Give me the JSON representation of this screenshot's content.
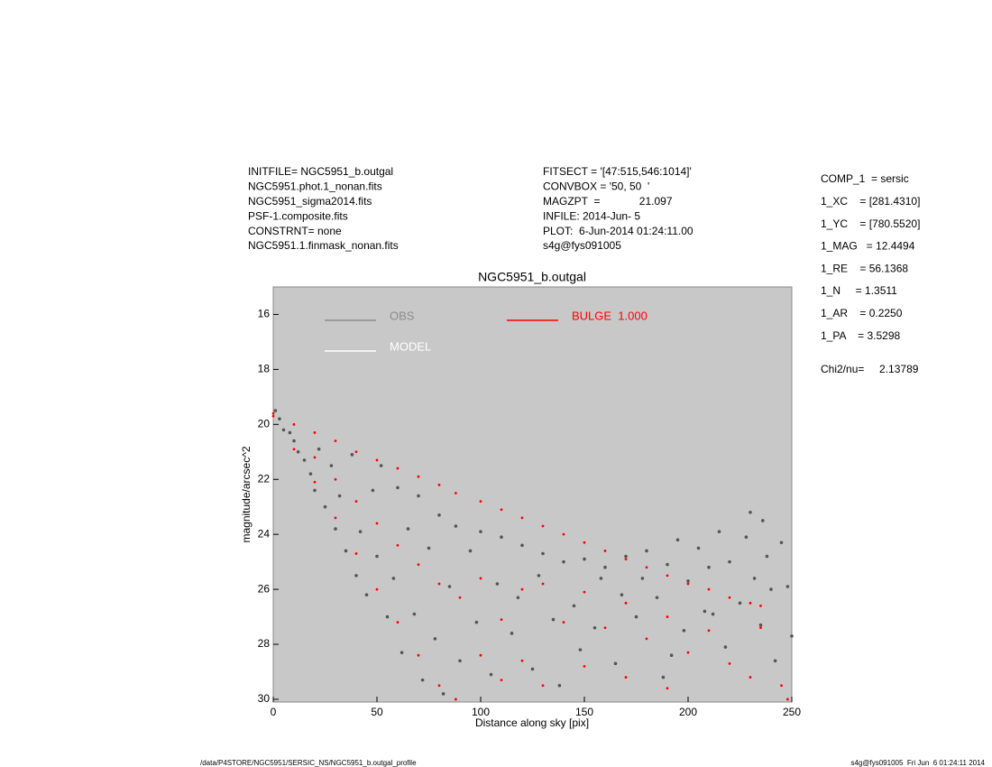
{
  "header": {
    "left": [
      "INITFILE= NGC5951_b.outgal",
      "NGC5951.phot.1_nonan.fits",
      "NGC5951_sigma2014.fits",
      "PSF-1.composite.fits",
      "CONSTRNT= none",
      "NGC5951.1.finmask_nonan.fits"
    ],
    "middle": [
      "FITSECT = '[47:515,546:1014]'",
      "CONVBOX = '50, 50  '",
      "MAGZPT  =             21.097",
      "INFILE: 2014-Jun- 5",
      "PLOT:  6-Jun-2014 01:24:11.00",
      "s4g@fys091005"
    ],
    "right": [
      "COMP_1  = sersic",
      "1_XC    = [281.4310]",
      "1_YC    = [780.5520]",
      "1_MAG   = 12.4494",
      "1_RE    = 56.1368",
      "1_N     = 1.3511",
      "1_AR    = 0.2250",
      "1_PA    = 3.5298"
    ],
    "chi": "Chi2/nu=     2.13789"
  },
  "footer": {
    "left": "/data/P4STORE/NGC5951/SERSIC_NS/NGC5951_b.outgal_profile",
    "right": "s4g@fys091005  Fri Jun  6 01:24:11 2014"
  },
  "chart_data": {
    "type": "scatter",
    "title": "NGC5951_b.outgal",
    "xlabel": "Distance along sky [pix]",
    "ylabel": "magnitude/arcsec^2",
    "xlim": [
      0,
      250
    ],
    "ylim": [
      30.1,
      15
    ],
    "xticks": [
      0,
      50,
      100,
      150,
      200,
      250
    ],
    "yticks": [
      16,
      18,
      20,
      22,
      24,
      26,
      28,
      30
    ],
    "background": "#c8c8c8",
    "series": [
      {
        "name": "OBS",
        "color": "#555555",
        "legend_color": "#8c8c8c",
        "x": [
          1,
          3,
          5,
          8,
          10,
          12,
          15,
          18,
          20,
          22,
          25,
          28,
          30,
          32,
          35,
          38,
          40,
          42,
          45,
          48,
          50,
          52,
          55,
          58,
          60,
          62,
          65,
          68,
          70,
          72,
          75,
          78,
          80,
          82,
          85,
          88,
          90,
          95,
          98,
          100,
          105,
          108,
          110,
          115,
          118,
          120,
          125,
          128,
          130,
          135,
          138,
          140,
          145,
          148,
          150,
          155,
          158,
          160,
          165,
          168,
          170,
          175,
          178,
          180,
          185,
          188,
          190,
          195,
          198,
          200,
          205,
          208,
          210,
          215,
          218,
          220,
          225,
          228,
          230,
          232,
          235,
          238,
          240,
          242,
          245,
          248,
          250,
          236,
          212,
          192
        ],
        "values": [
          19.5,
          19.8,
          20.2,
          20.3,
          20.6,
          21.0,
          21.3,
          21.8,
          22.4,
          20.9,
          23.0,
          21.5,
          23.8,
          22.6,
          24.6,
          21.1,
          25.5,
          23.9,
          26.2,
          22.4,
          24.8,
          21.5,
          27.0,
          25.6,
          22.3,
          28.3,
          23.8,
          26.9,
          22.6,
          29.3,
          24.5,
          27.8,
          23.3,
          29.8,
          25.9,
          23.7,
          28.6,
          24.6,
          27.2,
          23.9,
          29.1,
          25.8,
          24.1,
          27.6,
          26.3,
          24.4,
          28.9,
          25.5,
          24.7,
          27.1,
          29.5,
          25.0,
          26.6,
          28.2,
          24.9,
          27.4,
          25.6,
          25.2,
          28.7,
          26.2,
          24.8,
          27.0,
          25.6,
          24.6,
          26.3,
          29.2,
          25.1,
          24.2,
          27.5,
          25.7,
          24.5,
          26.8,
          25.2,
          23.9,
          28.1,
          25.0,
          26.5,
          24.1,
          23.2,
          25.6,
          27.3,
          24.8,
          26.0,
          28.6,
          24.3,
          25.9,
          27.7,
          23.5,
          26.9,
          28.4
        ]
      },
      {
        "name": "MODEL",
        "color": "#ffffff",
        "x": [],
        "values": []
      },
      {
        "name": "BULGE  1.000",
        "color": "#ff0000",
        "x": [
          0,
          0,
          10,
          10,
          20,
          20,
          20,
          30,
          30,
          30,
          40,
          40,
          40,
          50,
          50,
          50,
          60,
          60,
          60,
          70,
          70,
          70,
          80,
          80,
          80,
          88,
          88,
          90,
          100,
          100,
          100,
          110,
          110,
          110,
          120,
          120,
          120,
          130,
          130,
          130,
          140,
          140,
          150,
          150,
          150,
          160,
          160,
          170,
          170,
          170,
          180,
          180,
          190,
          190,
          190,
          200,
          200,
          210,
          210,
          220,
          220,
          230,
          230,
          235,
          235,
          245,
          248
        ],
        "values": [
          19.6,
          19.7,
          20.0,
          20.9,
          20.3,
          22.1,
          21.2,
          20.6,
          23.4,
          22.0,
          21.0,
          24.7,
          22.8,
          21.3,
          26.0,
          23.6,
          21.6,
          27.2,
          24.4,
          21.9,
          28.4,
          25.1,
          22.2,
          29.5,
          25.8,
          22.5,
          30.0,
          26.3,
          22.8,
          28.4,
          25.6,
          23.1,
          27.1,
          29.3,
          23.4,
          26.0,
          28.6,
          23.7,
          25.8,
          29.5,
          24.0,
          27.2,
          24.3,
          26.1,
          28.8,
          24.6,
          27.4,
          24.9,
          26.5,
          29.2,
          25.2,
          27.8,
          25.5,
          27.0,
          29.6,
          25.8,
          28.3,
          26.0,
          27.5,
          26.3,
          28.7,
          26.5,
          29.2,
          26.6,
          27.4,
          29.5,
          30.0
        ]
      }
    ]
  }
}
